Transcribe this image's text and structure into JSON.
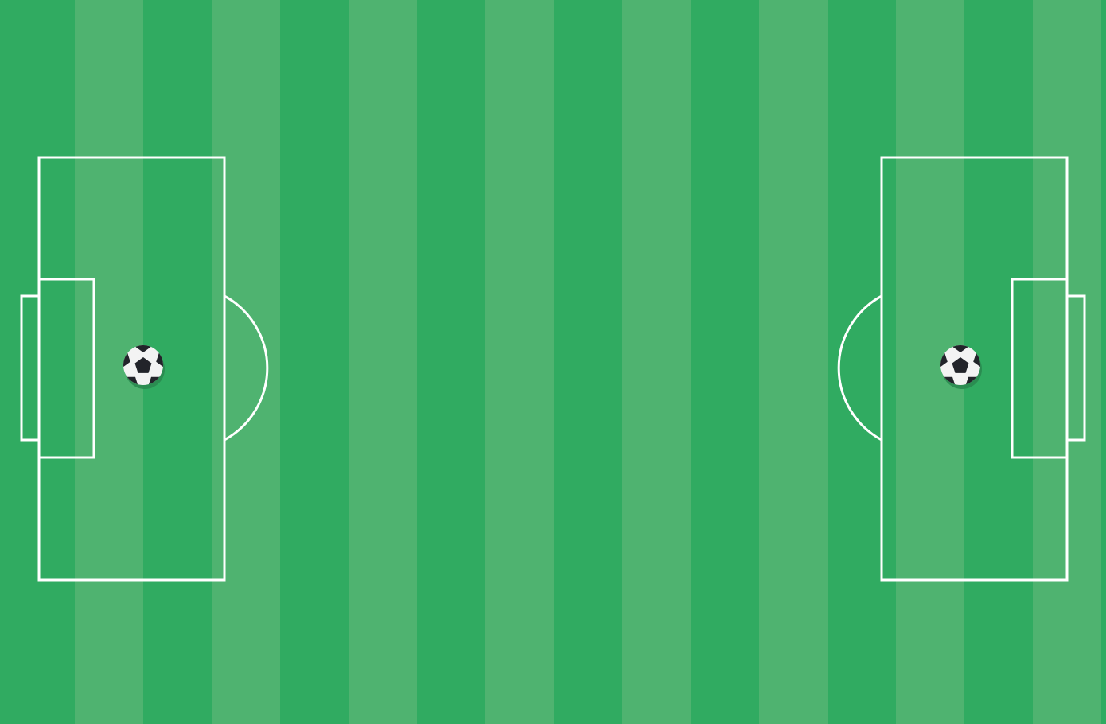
{
  "pitch": {
    "stripe_colors": [
      "#30ab61",
      "#4fb370"
    ],
    "line_color": "#ffffff",
    "stripe_count": 17
  },
  "balls": [
    {
      "side": "left",
      "icon": "soccer-ball-icon",
      "colors": {
        "body": "#f3f3f3",
        "panel": "#22242a",
        "shadow": "#2a8a50"
      }
    },
    {
      "side": "right",
      "icon": "soccer-ball-icon",
      "colors": {
        "body": "#f3f3f3",
        "panel": "#22242a",
        "shadow": "#2a8a50"
      }
    }
  ]
}
